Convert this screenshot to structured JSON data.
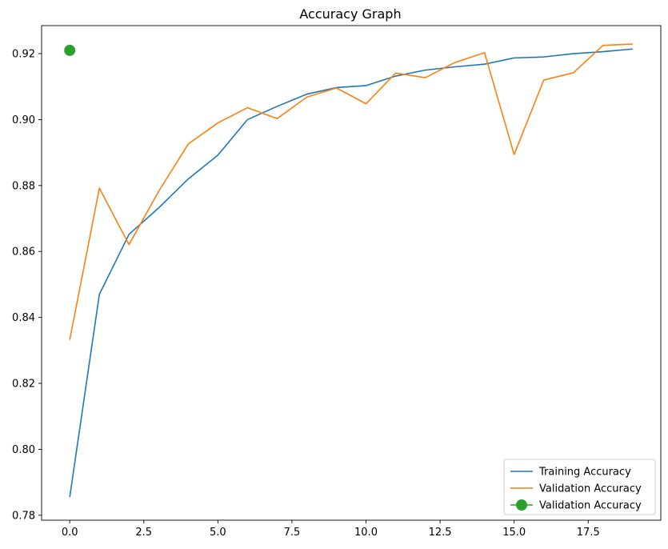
{
  "chart_data": {
    "type": "line",
    "title": "Accuracy Graph",
    "xlabel": "",
    "ylabel": "",
    "xlim": [
      -0.95,
      19.95
    ],
    "ylim": [
      0.7785,
      0.9285
    ],
    "x_ticks": [
      0.0,
      2.5,
      5.0,
      7.5,
      10.0,
      12.5,
      15.0,
      17.5
    ],
    "x_tick_labels": [
      "0.0",
      "2.5",
      "5.0",
      "7.5",
      "10.0",
      "12.5",
      "15.0",
      "17.5"
    ],
    "y_ticks": [
      0.78,
      0.8,
      0.82,
      0.84,
      0.86,
      0.88,
      0.9,
      0.92
    ],
    "y_tick_labels": [
      "0.78",
      "0.80",
      "0.82",
      "0.84",
      "0.86",
      "0.88",
      "0.90",
      "0.92"
    ],
    "grid": false,
    "legend_position": "bottom-right",
    "x": [
      0,
      1,
      2,
      3,
      4,
      5,
      6,
      7,
      8,
      9,
      10,
      11,
      12,
      13,
      14,
      15,
      16,
      17,
      18,
      19
    ],
    "series": [
      {
        "name": "Training Accuracy",
        "color": "#1f77b4",
        "style": "line",
        "values": [
          0.7855,
          0.847,
          0.8652,
          0.8732,
          0.882,
          0.8892,
          0.9,
          0.904,
          0.9077,
          0.9097,
          0.9103,
          0.9132,
          0.915,
          0.916,
          0.9168,
          0.9187,
          0.919,
          0.92,
          0.9206,
          0.9214
        ]
      },
      {
        "name": "Validation Accuracy",
        "color": "#ff7f0e",
        "style": "line",
        "values": [
          0.8332,
          0.8792,
          0.8621,
          0.8782,
          0.8926,
          0.899,
          0.9036,
          0.9003,
          0.9068,
          0.9096,
          0.9048,
          0.9141,
          0.9127,
          0.9173,
          0.9203,
          0.8894,
          0.912,
          0.9142,
          0.9225,
          0.9229
        ]
      },
      {
        "name": "Validation Accuracy",
        "color": "#2ca02c",
        "style": "marker",
        "x": [
          0
        ],
        "values": [
          0.921
        ]
      }
    ]
  }
}
